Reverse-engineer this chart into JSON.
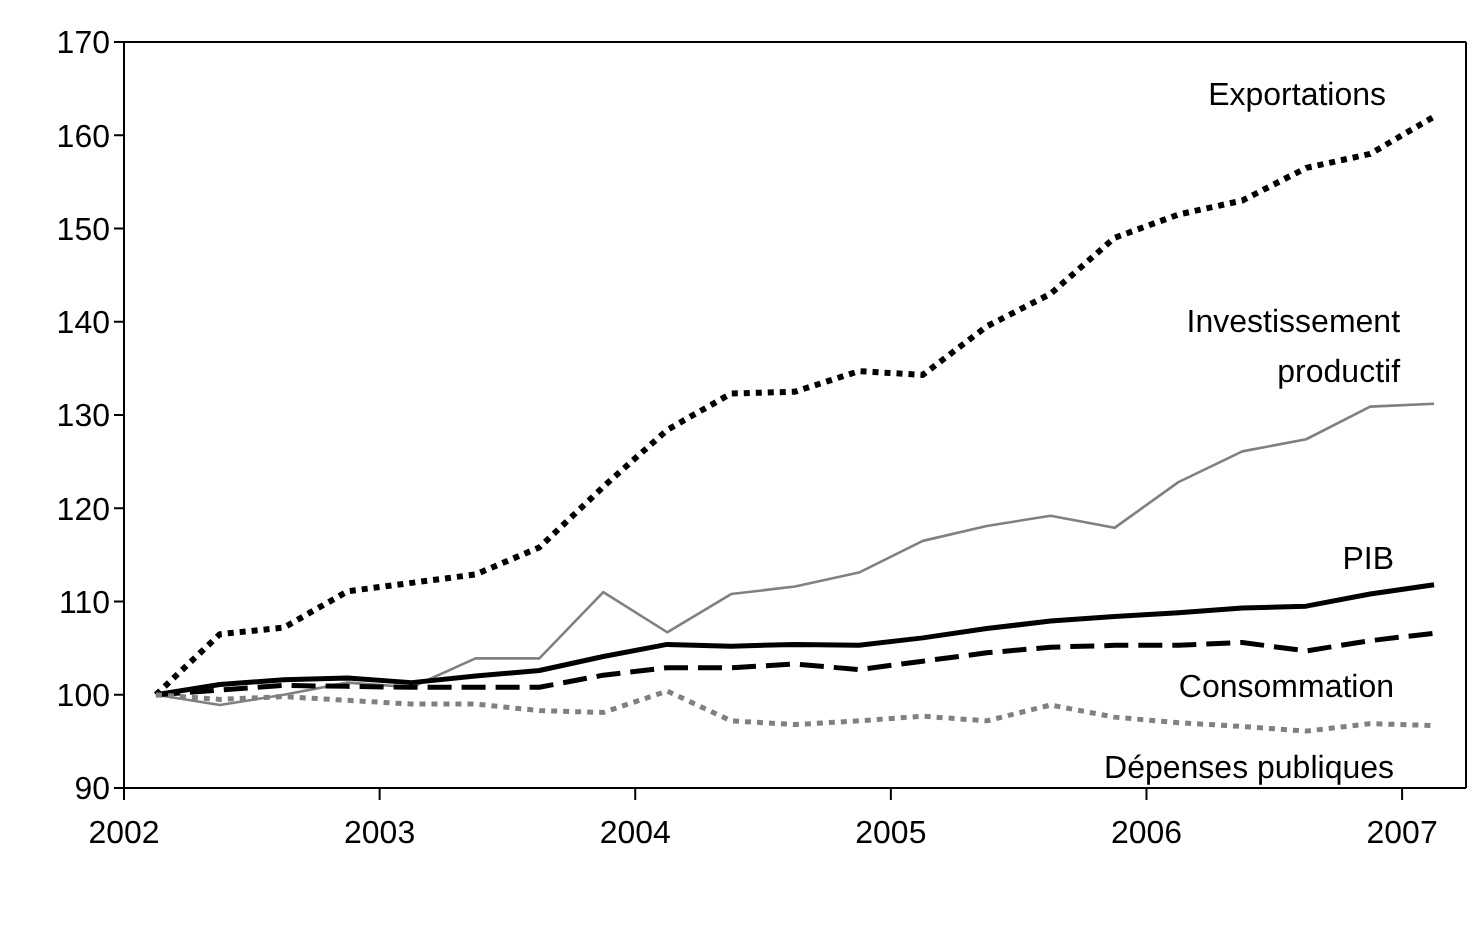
{
  "chart_data": {
    "type": "line",
    "x": [
      2002.125,
      2002.375,
      2002.625,
      2002.875,
      2003.125,
      2003.375,
      2003.625,
      2003.875,
      2004.125,
      2004.375,
      2004.625,
      2004.875,
      2005.125,
      2005.375,
      2005.625,
      2005.875,
      2006.125,
      2006.375,
      2006.625,
      2006.875,
      2007.125
    ],
    "series": [
      {
        "name": "Exportations",
        "color": "#000000",
        "line_style": "dotted",
        "values": [
          100,
          106.5,
          107.2,
          111.1,
          112,
          112.9,
          115.8,
          122.3,
          128.4,
          132.3,
          132.5,
          134.7,
          134.3,
          139.5,
          143,
          149,
          151.5,
          153,
          156.5,
          158,
          162
        ]
      },
      {
        "name": "Investissement productif",
        "color": "#808080",
        "line_style": "solid",
        "values": [
          100,
          98.9,
          100,
          101.3,
          100.8,
          103.9,
          103.9,
          111,
          106.7,
          110.8,
          111.6,
          113.1,
          116.5,
          118.1,
          119.2,
          117.9,
          122.8,
          126.1,
          127.4,
          130.9,
          131.2
        ]
      },
      {
        "name": "PIB",
        "color": "#000000",
        "line_style": "solid",
        "values": [
          100,
          101.1,
          101.6,
          101.8,
          101.3,
          102,
          102.6,
          104.1,
          105.4,
          105.2,
          105.4,
          105.3,
          106.1,
          107.1,
          107.9,
          108.4,
          108.8,
          109.3,
          109.5,
          110.8,
          111.8
        ]
      },
      {
        "name": "Consommation",
        "color": "#000000",
        "line_style": "dashed",
        "values": [
          100,
          100.5,
          101,
          100.9,
          100.8,
          100.8,
          100.8,
          102.1,
          102.9,
          102.9,
          103.3,
          102.7,
          103.6,
          104.5,
          105.1,
          105.3,
          105.3,
          105.6,
          104.7,
          105.8,
          106.6
        ]
      },
      {
        "name": "Dépenses publiques",
        "color": "#808080",
        "line_style": "dotted",
        "values": [
          100,
          99.5,
          99.8,
          99.4,
          99,
          99,
          98.3,
          98.1,
          100.4,
          97.2,
          96.8,
          97.2,
          97.7,
          97.2,
          98.9,
          97.6,
          97,
          96.6,
          96.1,
          96.9,
          96.7
        ]
      }
    ],
    "xlim": [
      2002,
      2007.25
    ],
    "xticks": [
      2002,
      2003,
      2004,
      2005,
      2006,
      2007
    ],
    "ylim": [
      90,
      170
    ],
    "yticks": [
      90,
      100,
      110,
      120,
      130,
      140,
      150,
      160,
      170
    ],
    "grid": false,
    "legend": false,
    "marker": "none"
  }
}
